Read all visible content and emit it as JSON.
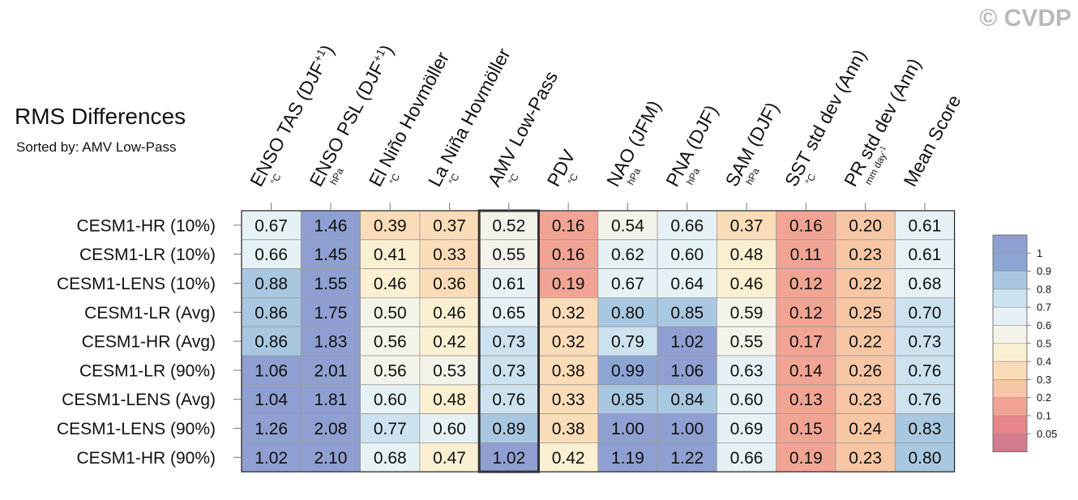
{
  "watermark": "© CVDP",
  "chart_data": {
    "type": "heatmap",
    "title": "RMS Differences",
    "subtitle": "Sorted by: AMV Low-Pass",
    "highlight_column": 4,
    "columns": [
      {
        "label": "ENSO TAS (DJF+1)",
        "unit": "°C"
      },
      {
        "label": "ENSO PSL (DJF+1)",
        "unit": "hPa"
      },
      {
        "label": "El Niño Hovmöller",
        "unit": "°C"
      },
      {
        "label": "La Niña Hovmöller",
        "unit": "°C"
      },
      {
        "label": "AMV Low-Pass",
        "unit": "°C"
      },
      {
        "label": "PDV",
        "unit": "°C"
      },
      {
        "label": "NAO (JFM)",
        "unit": "hPa"
      },
      {
        "label": "PNA (DJF)",
        "unit": "hPa"
      },
      {
        "label": "SAM (DJF)",
        "unit": "hPa"
      },
      {
        "label": "SST std dev (Ann)",
        "unit": "°C"
      },
      {
        "label": "PR std dev (Ann)",
        "unit": "mm day-1"
      },
      {
        "label": "Mean Score",
        "unit": ""
      }
    ],
    "rows": [
      "CESM1-HR (10%)",
      "CESM1-LR (10%)",
      "CESM1-LENS (10%)",
      "CESM1-LR (Avg)",
      "CESM1-HR (Avg)",
      "CESM1-LR (90%)",
      "CESM1-LENS (Avg)",
      "CESM1-LENS (90%)",
      "CESM1-HR (90%)"
    ],
    "values": [
      [
        "0.67",
        "1.46",
        "0.39",
        "0.37",
        "0.52",
        "0.16",
        "0.54",
        "0.66",
        "0.37",
        "0.16",
        "0.20",
        "0.61"
      ],
      [
        "0.66",
        "1.45",
        "0.41",
        "0.33",
        "0.55",
        "0.16",
        "0.62",
        "0.60",
        "0.48",
        "0.11",
        "0.23",
        "0.61"
      ],
      [
        "0.88",
        "1.55",
        "0.46",
        "0.36",
        "0.61",
        "0.19",
        "0.67",
        "0.64",
        "0.46",
        "0.12",
        "0.22",
        "0.68"
      ],
      [
        "0.86",
        "1.75",
        "0.50",
        "0.46",
        "0.65",
        "0.32",
        "0.80",
        "0.85",
        "0.59",
        "0.12",
        "0.25",
        "0.70"
      ],
      [
        "0.86",
        "1.83",
        "0.56",
        "0.42",
        "0.73",
        "0.32",
        "0.79",
        "1.02",
        "0.55",
        "0.17",
        "0.22",
        "0.73"
      ],
      [
        "1.06",
        "2.01",
        "0.56",
        "0.53",
        "0.73",
        "0.38",
        "0.99",
        "1.06",
        "0.63",
        "0.14",
        "0.26",
        "0.76"
      ],
      [
        "1.04",
        "1.81",
        "0.60",
        "0.48",
        "0.76",
        "0.33",
        "0.85",
        "0.84",
        "0.60",
        "0.13",
        "0.23",
        "0.76"
      ],
      [
        "1.26",
        "2.08",
        "0.77",
        "0.60",
        "0.89",
        "0.38",
        "1.00",
        "1.00",
        "0.69",
        "0.15",
        "0.24",
        "0.83"
      ],
      [
        "1.02",
        "2.10",
        "0.68",
        "0.47",
        "1.02",
        "0.42",
        "1.19",
        "1.22",
        "0.66",
        "0.19",
        "0.23",
        "0.80"
      ]
    ],
    "colorbar": {
      "labels": [
        "1",
        "0.9",
        "0.8",
        "0.7",
        "0.6",
        "0.5",
        "0.4",
        "0.3",
        "0.2",
        "0.1",
        "0.05"
      ],
      "thresholds": [
        0.05,
        0.1,
        0.2,
        0.3,
        0.4,
        0.5,
        0.6,
        0.7,
        0.8,
        0.9,
        1.0
      ],
      "colors": [
        "#d47c8f",
        "#e7858a",
        "#f2a494",
        "#f7c6a5",
        "#fbdcb8",
        "#fbefd2",
        "#f3f3ea",
        "#e5f1f4",
        "#cce2ee",
        "#a9c7e0",
        "#8da5d3",
        "#8f9fd1"
      ]
    }
  }
}
